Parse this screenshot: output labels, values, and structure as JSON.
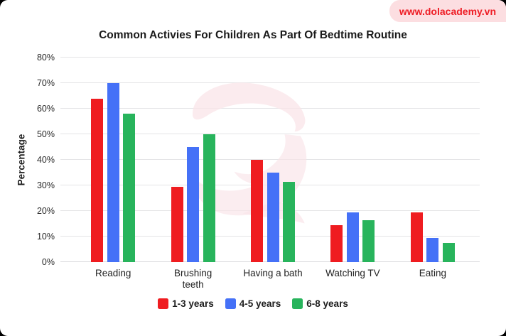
{
  "badge": {
    "text": "www.dolacademy.vn"
  },
  "title": "Common Activies For Children As Part Of Bedtime Routine",
  "colors": {
    "outside_bg": "#000000",
    "page_bg": "#ffffff",
    "badge_bg": "#fcdee1",
    "badge_text": "#ee1c24",
    "grid": "#e4e4e6",
    "watermark": "#f9e4e8",
    "series_red": "#ef1c20",
    "series_blue": "#4571f7",
    "series_green": "#28b45c"
  },
  "chart_data": {
    "type": "bar",
    "title": "Common Activies For Children As Part Of Bedtime Routine",
    "xlabel": "",
    "ylabel": "Percentage",
    "ylim": [
      0,
      80
    ],
    "ytick_labels": [
      "0%",
      "10%",
      "20%",
      "30%",
      "40%",
      "50%",
      "60%",
      "70%",
      "80%"
    ],
    "grid": true,
    "legend_position": "bottom",
    "categories": [
      "Reading",
      "Brushing\nteeth",
      "Having a bath",
      "Watching TV",
      "Eating"
    ],
    "series": [
      {
        "name": "1-3 years",
        "color": "#ef1c20",
        "values": [
          64,
          29.5,
          40,
          14.5,
          19.5
        ]
      },
      {
        "name": "4-5 years",
        "color": "#4571f7",
        "values": [
          70,
          45,
          35,
          19.5,
          9.5
        ]
      },
      {
        "name": "6-8 years",
        "color": "#28b45c",
        "values": [
          58,
          50,
          31.5,
          16.5,
          7.5
        ]
      }
    ]
  }
}
